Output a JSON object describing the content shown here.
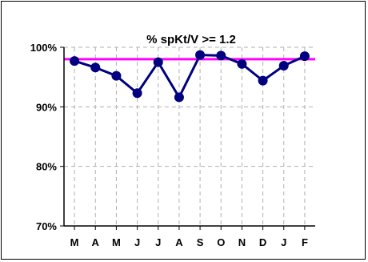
{
  "chart_data": {
    "type": "line",
    "title": "% spKt/V >= 1.2",
    "xlabel": "",
    "ylabel": "",
    "categories": [
      "M",
      "A",
      "M",
      "J",
      "J",
      "A",
      "S",
      "O",
      "N",
      "D",
      "J",
      "F"
    ],
    "series": [
      {
        "values": [
          97.7,
          96.6,
          95.2,
          92.3,
          97.5,
          91.6,
          98.7,
          98.6,
          97.2,
          94.4,
          96.9,
          98.5
        ]
      }
    ],
    "target": 98,
    "ylim": [
      70,
      100
    ],
    "yticks": [
      70,
      80,
      90,
      100
    ],
    "ytick_labels": [
      "70%",
      "80%",
      "90%",
      "100%"
    ],
    "grid": true,
    "colors": {
      "series": "#000080",
      "target": "#ff00ff",
      "grid": "#b0b0b0"
    }
  }
}
